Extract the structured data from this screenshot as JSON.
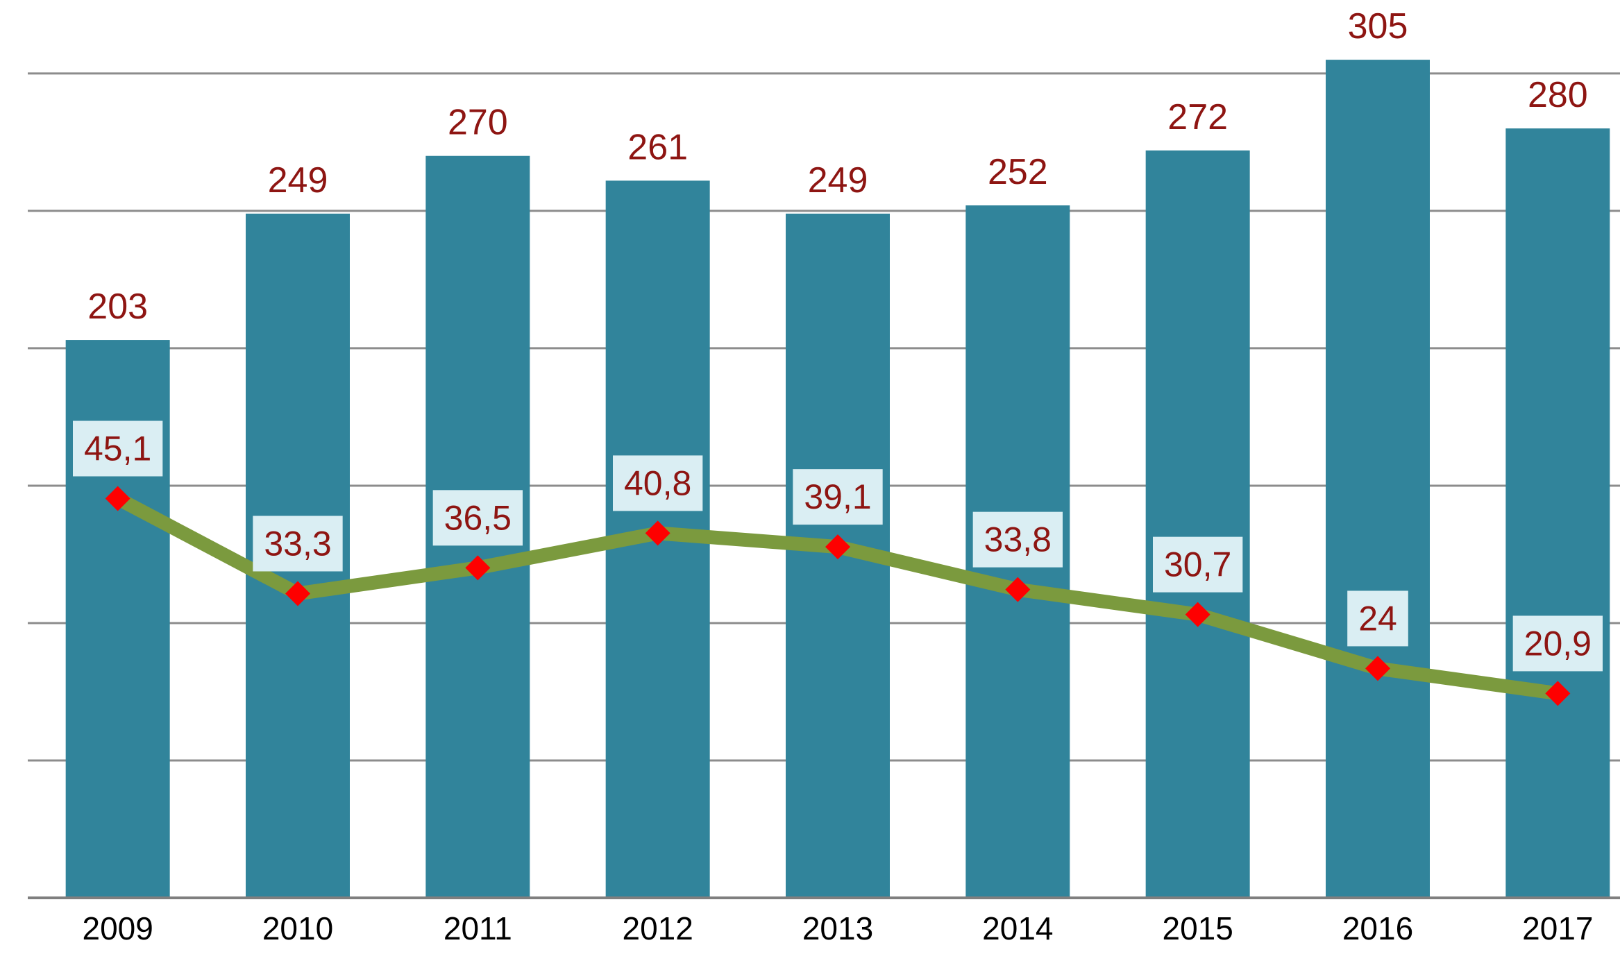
{
  "chart_data": {
    "type": "bar",
    "title": "",
    "xlabel": "",
    "ylabel": "",
    "legend": "none",
    "grid": true,
    "background": "#FFFFFF",
    "gridline_color": "#8C8C8C",
    "axis_line_color": "#7F7F7F",
    "x_tick_label_color": "#000000",
    "categories": [
      "2009",
      "2010",
      "2011",
      "2012",
      "2013",
      "2014",
      "2015",
      "2016",
      "2017"
    ],
    "primary_ylim": [
      0,
      322.7
    ],
    "primary_grid_step": 50,
    "secondary_ylim": [
      -4.48,
      105.62
    ],
    "series": [
      {
        "name": "bars",
        "type": "bar",
        "axis": "primary",
        "values": [
          203,
          249,
          270,
          261,
          249,
          252,
          272,
          305,
          280
        ],
        "labels": [
          "203",
          "249",
          "270",
          "261",
          "249",
          "252",
          "272",
          "305",
          "280"
        ],
        "color": "#31849B",
        "label_color": "#8E1512"
      },
      {
        "name": "line",
        "type": "line",
        "axis": "secondary",
        "values": [
          45.1,
          33.3,
          36.5,
          40.8,
          39.1,
          33.8,
          30.7,
          24,
          20.9
        ],
        "labels": [
          "45,1",
          "33,3",
          "36,5",
          "40,8",
          "39,1",
          "33,8",
          "30,7",
          "24",
          "20,9"
        ],
        "color": "#7B9A3E",
        "marker": "diamond",
        "marker_color": "#FE0000",
        "label_color": "#8E1512",
        "label_bg": "#DAEEF3"
      }
    ]
  }
}
